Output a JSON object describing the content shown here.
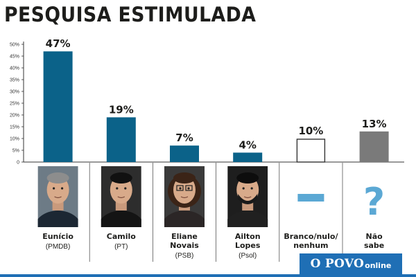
{
  "header": {
    "title": "PESQUISA ESTIMULADA"
  },
  "brand": {
    "name": "O POVO",
    "suffix": "online"
  },
  "colors": {
    "bar": "#0b6289",
    "gray": "#7a7a7a",
    "cyan": "#5ba8d4",
    "text": "#1d1d1b"
  },
  "chart_data": {
    "type": "bar",
    "title": "PESQUISA ESTIMULADA",
    "ylim": [
      0,
      50
    ],
    "yticks": [
      "0",
      "5%",
      "10%",
      "15%",
      "20%",
      "25%",
      "30%",
      "35%",
      "40%",
      "45%",
      "50%"
    ],
    "grid": false,
    "categories": [
      "Eunício",
      "Camilo",
      "Eliane Novais",
      "Ailton Lopes",
      "Branco/nulo/nenhum",
      "Não sabe"
    ],
    "values": [
      47,
      19,
      7,
      4,
      10,
      13
    ],
    "value_labels": [
      "47%",
      "19%",
      "7%",
      "4%",
      "10%",
      "13%"
    ],
    "bar_styles": [
      "solid",
      "solid",
      "solid",
      "solid",
      "outline",
      "gray"
    ],
    "candidates": [
      {
        "name_lines": [
          "Eunício"
        ],
        "party": "(PMDB)",
        "icon": "portrait-eunicio"
      },
      {
        "name_lines": [
          "Camilo"
        ],
        "party": "(PT)",
        "icon": "portrait-camilo"
      },
      {
        "name_lines": [
          "Eliane",
          "Novais"
        ],
        "party": "(PSB)",
        "icon": "portrait-eliane"
      },
      {
        "name_lines": [
          "Ailton",
          "Lopes"
        ],
        "party": "(Psol)",
        "icon": "portrait-ailton"
      },
      {
        "name_lines": [
          "Branco/nulo/",
          "nenhum"
        ],
        "party": "",
        "icon": "dash-icon"
      },
      {
        "name_lines": [
          "Não",
          "sabe"
        ],
        "party": "",
        "icon": "question-icon"
      }
    ]
  }
}
